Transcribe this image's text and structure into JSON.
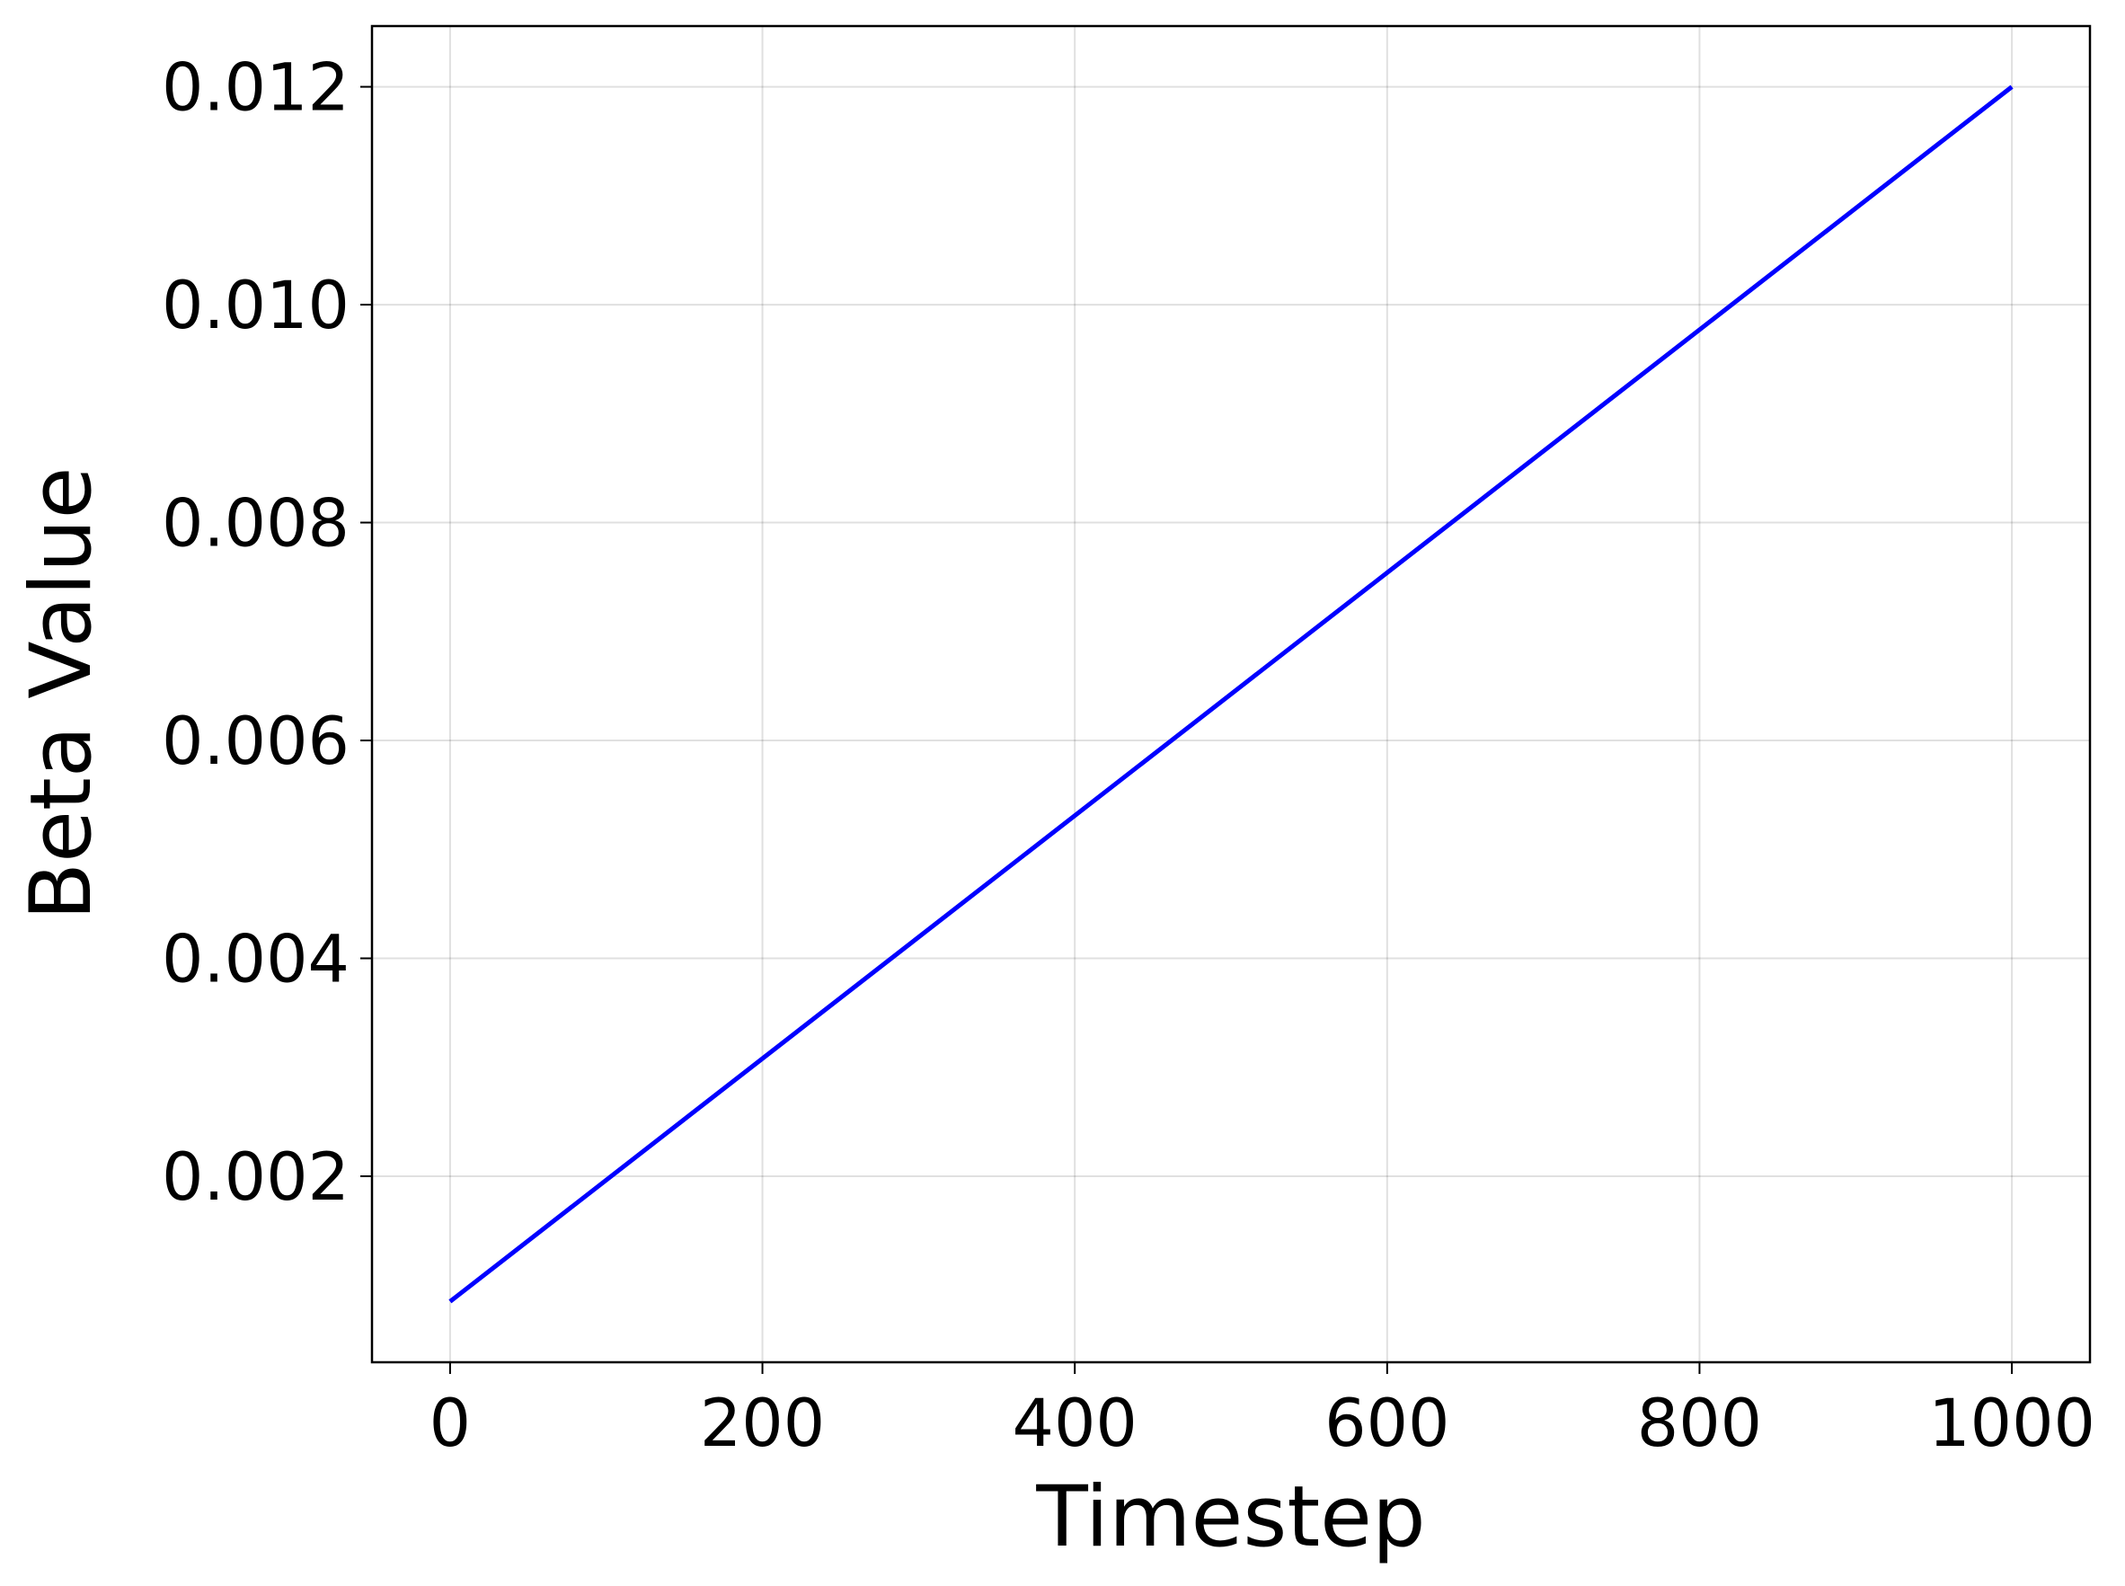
{
  "chart_data": {
    "type": "line",
    "x_label": "Timestep",
    "y_label": "Beta Value",
    "series": [
      {
        "color": "#0000ff",
        "x": [
          0,
          1000
        ],
        "values": [
          0.00085,
          0.012
        ]
      }
    ],
    "xlim": [
      -50,
      1050
    ],
    "xticks": [
      0,
      200,
      400,
      600,
      800,
      1000
    ],
    "ylim": [
      0.0002925,
      0.0125575
    ],
    "yticks": [
      {
        "value": 0.002,
        "label": "0.002"
      },
      {
        "value": 0.004,
        "label": "0.004"
      },
      {
        "value": 0.006,
        "label": "0.006"
      },
      {
        "value": 0.008,
        "label": "0.008"
      },
      {
        "value": 0.01,
        "label": "0.010"
      },
      {
        "value": 0.012,
        "label": "0.012"
      }
    ],
    "grid": true
  }
}
